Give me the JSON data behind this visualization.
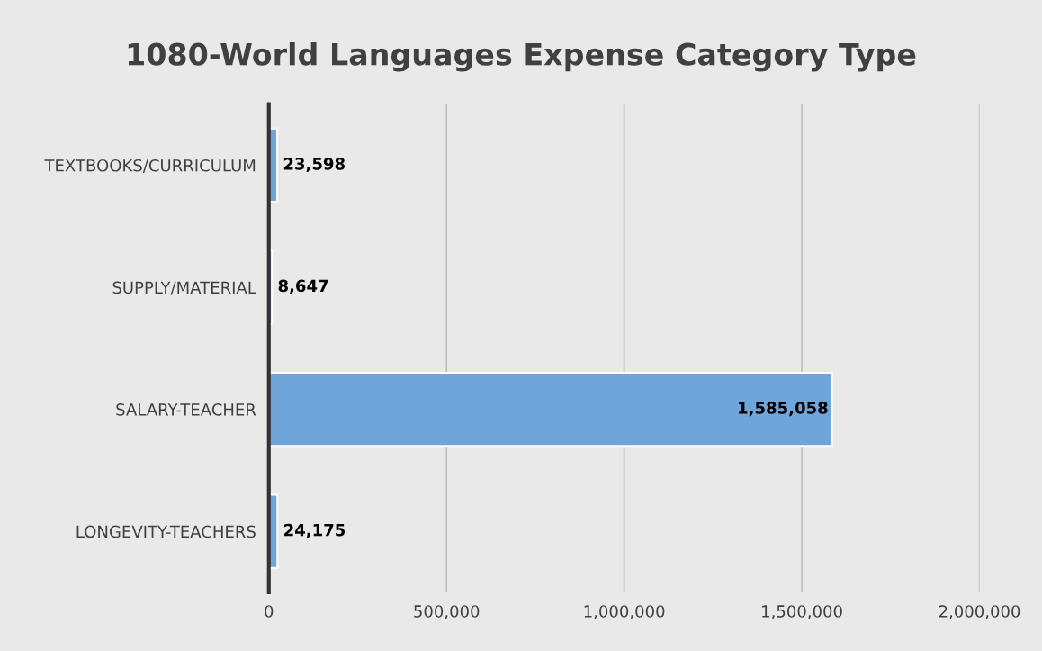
{
  "chart_data": {
    "type": "bar",
    "orientation": "horizontal",
    "title": "1080-World Languages Expense Category Type",
    "categories": [
      "TEXTBOOKS/CURRICULUM",
      "SUPPLY/MATERIAL",
      "SALARY-TEACHER",
      "LONGEVITY-TEACHERS"
    ],
    "values": [
      23598,
      8647,
      1585058,
      24175
    ],
    "color": "#6fa5d8",
    "xlim": [
      0,
      2000000
    ],
    "value_labels": [
      "23,598",
      "8,647",
      "1,585,058",
      "24,175"
    ],
    "xticks": [
      {
        "value": 0,
        "label": "0"
      },
      {
        "value": 500000,
        "label": "500,000"
      },
      {
        "value": 1000000,
        "label": "1,000,000"
      },
      {
        "value": 1500000,
        "label": "1,500,000"
      },
      {
        "value": 2000000,
        "label": "2,000,000"
      }
    ],
    "grid": "x",
    "legend": false
  }
}
